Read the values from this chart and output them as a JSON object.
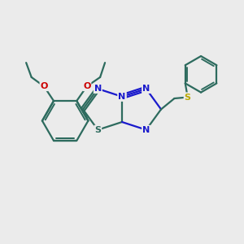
{
  "background_color": "#ebebeb",
  "bond_color": "#2d6b5e",
  "N_color": "#1a1acc",
  "O_color": "#cc0000",
  "S_yellow": "#b8a800",
  "S_green": "#2d6b5e",
  "lw": 1.6,
  "figsize": [
    3.0,
    3.0
  ],
  "dpi": 100,
  "xlim": [
    0,
    10
  ],
  "ylim": [
    0,
    10
  ]
}
